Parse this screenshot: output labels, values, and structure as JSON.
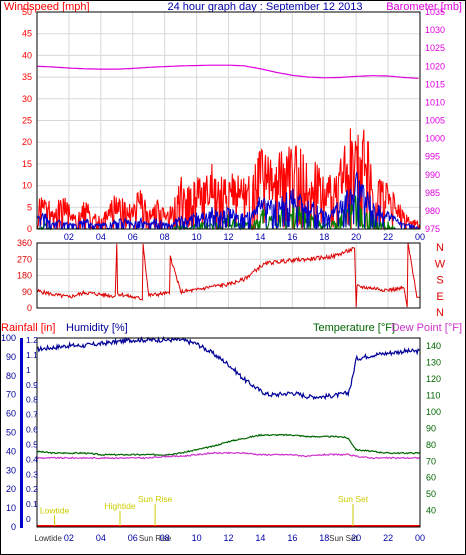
{
  "colors": {
    "windspeed": "#ff0000",
    "gust_avg": "#0000cc",
    "wind_avg": "#008000",
    "barometer": "#e000e0",
    "direction": "#dd0000",
    "humidity": "#000099",
    "temperature": "#006600",
    "dewpoint": "#cc33cc",
    "rainfall": "#ff0000",
    "title": "#0000aa",
    "tide": "#cccc00",
    "border": "#000000"
  },
  "chart_data": [
    {
      "id": "wind",
      "type": "line",
      "title": "24 hour graph day : September 12 2013",
      "ylabel": "Windspeed [mph]",
      "y2label": "Barometer [mb]",
      "ylim": [
        0,
        50
      ],
      "y2lim": [
        975,
        1035
      ],
      "yticks": [
        "0",
        "5",
        "10",
        "15",
        "20",
        "25",
        "30",
        "35",
        "40",
        "45",
        "50"
      ],
      "y2ticks": [
        "975",
        "980",
        "985",
        "990",
        "995",
        "1000",
        "1005",
        "1010",
        "1015",
        "1020",
        "1025",
        "1030",
        "1035"
      ],
      "xlim": [
        0,
        24
      ],
      "xticks": [
        "02",
        "04",
        "06",
        "08",
        "10",
        "12",
        "14",
        "16",
        "18",
        "20",
        "22",
        "00"
      ],
      "xtick_hours": [
        2,
        4,
        6,
        8,
        10,
        12,
        14,
        16,
        18,
        20,
        22,
        24
      ],
      "grid": true,
      "series": [
        {
          "key": "barometer",
          "axis": "y2",
          "x": [
            0,
            1,
            2,
            3,
            4,
            5,
            6,
            7,
            8,
            9,
            10,
            11,
            12,
            13,
            14,
            15,
            16,
            17,
            18,
            19,
            20,
            21,
            22,
            23,
            24
          ],
          "values": [
            1020.0,
            1019.8,
            1019.5,
            1019.3,
            1019.2,
            1019.2,
            1019.4,
            1019.7,
            1019.9,
            1020.1,
            1020.2,
            1020.3,
            1020.3,
            1020.1,
            1019.3,
            1018.3,
            1017.5,
            1017.0,
            1016.8,
            1016.9,
            1017.2,
            1017.4,
            1017.3,
            1016.9,
            1016.6
          ]
        },
        {
          "key": "gust",
          "axis": "y",
          "x": [
            0,
            0.5,
            1,
            1.5,
            2,
            2.5,
            3,
            3.5,
            4,
            4.5,
            5,
            5.5,
            6,
            6.5,
            7,
            7.5,
            8,
            8.5,
            9,
            9.5,
            10,
            10.5,
            11,
            11.5,
            12,
            12.5,
            13,
            13.5,
            14,
            14.5,
            15,
            15.5,
            16,
            16.5,
            17,
            17.5,
            18,
            18.5,
            19,
            19.5,
            20,
            20.5,
            21,
            21.5,
            22,
            22.5,
            23,
            23.5,
            24
          ],
          "values": [
            5,
            7,
            3,
            6,
            4,
            2,
            5,
            3,
            2,
            4,
            6,
            5,
            4,
            7,
            3,
            5,
            3,
            4,
            10,
            7,
            9,
            8,
            11,
            9,
            10,
            9,
            8,
            9,
            13,
            12,
            12,
            13,
            14,
            13,
            10,
            11,
            8,
            9,
            12,
            15,
            20,
            17,
            11,
            9,
            7,
            5,
            3,
            2,
            1
          ]
        },
        {
          "key": "wind_avg",
          "axis": "y",
          "x": [
            0,
            0.5,
            1,
            1.5,
            2,
            2.5,
            3,
            3.5,
            4,
            4.5,
            5,
            5.5,
            6,
            6.5,
            7,
            7.5,
            8,
            8.5,
            9,
            9.5,
            10,
            10.5,
            11,
            11.5,
            12,
            12.5,
            13,
            13.5,
            14,
            14.5,
            15,
            15.5,
            16,
            16.5,
            17,
            17.5,
            18,
            18.5,
            19,
            19.5,
            20,
            20.5,
            21,
            21.5,
            22,
            22.5,
            23,
            23.5,
            24
          ],
          "values": [
            2,
            3,
            1,
            2,
            1,
            1,
            2,
            1,
            1,
            1,
            2,
            2,
            1,
            2,
            1,
            2,
            1,
            1,
            3,
            2,
            3,
            3,
            4,
            3,
            4,
            3,
            3,
            3,
            6,
            5,
            5,
            6,
            7,
            6,
            5,
            5,
            3,
            4,
            5,
            7,
            10,
            8,
            5,
            4,
            3,
            2,
            1,
            1,
            0
          ]
        },
        {
          "key": "wind_min",
          "axis": "y",
          "x": [
            0,
            0.5,
            1,
            1.5,
            2,
            2.5,
            3,
            3.5,
            4,
            4.5,
            5,
            5.5,
            6,
            6.5,
            7,
            7.5,
            8,
            8.5,
            9,
            9.5,
            10,
            10.5,
            11,
            11.5,
            12,
            12.5,
            13,
            13.5,
            14,
            14.5,
            15,
            15.5,
            16,
            16.5,
            17,
            17.5,
            18,
            18.5,
            19,
            19.5,
            20,
            20.5,
            21,
            21.5,
            22,
            22.5,
            23,
            23.5,
            24
          ],
          "values": [
            0,
            1,
            0,
            0,
            0,
            0,
            0,
            0,
            0,
            0,
            0,
            0,
            0,
            0,
            0,
            0,
            0,
            0,
            1,
            0,
            1,
            1,
            1,
            1,
            2,
            1,
            1,
            1,
            3,
            2,
            3,
            3,
            4,
            3,
            2,
            2,
            1,
            1,
            2,
            3,
            5,
            3,
            2,
            1,
            1,
            0,
            0,
            0,
            0
          ]
        }
      ]
    },
    {
      "id": "direction",
      "type": "line",
      "ylim": [
        0,
        360
      ],
      "yticks": [
        "0",
        "90",
        "180",
        "270",
        "360"
      ],
      "y2ticks": [
        "N",
        "W",
        "S",
        "E",
        "N"
      ],
      "xlim": [
        0,
        24
      ],
      "grid": true,
      "series": [
        {
          "key": "direction",
          "axis": "y",
          "x": [
            0,
            1,
            2,
            3,
            4,
            4.9,
            5,
            5.05,
            6,
            6.6,
            6.65,
            7,
            8,
            8.3,
            8.35,
            9,
            10,
            11,
            12,
            13,
            14,
            14.5,
            15,
            16,
            17,
            18,
            18.5,
            19,
            19.9,
            20,
            20.05,
            21,
            22,
            23,
            23.2,
            23.25,
            23.8,
            24
          ],
          "values": [
            95,
            75,
            60,
            85,
            75,
            65,
            355,
            80,
            60,
            50,
            355,
            70,
            80,
            80,
            290,
            90,
            100,
            120,
            130,
            160,
            230,
            250,
            255,
            265,
            270,
            280,
            285,
            300,
            330,
            5,
            120,
            110,
            100,
            110,
            5,
            360,
            60,
            60
          ]
        }
      ]
    },
    {
      "id": "temp_hum",
      "type": "line",
      "ylabel": "Rainfall [in]",
      "ylabel2": "Humidity [%]",
      "y2label": "Temperature [°F]",
      "y2label2": "Dew Point [°F]",
      "hum_ylim": [
        0,
        100
      ],
      "hum_yticks": [
        "0",
        "10",
        "20",
        "30",
        "40",
        "50",
        "60",
        "70",
        "80",
        "90",
        "100"
      ],
      "rain_yticks": [
        "0",
        "0.1",
        "0.2",
        "0.3",
        "0.4",
        "0.5",
        "0.6",
        "0.7",
        "0.8",
        "0.9",
        "1",
        "1.1",
        "1.2"
      ],
      "temp_ylim": [
        30,
        145
      ],
      "temp_yticks": [
        "40",
        "50",
        "60",
        "70",
        "80",
        "90",
        "100",
        "110",
        "120",
        "130",
        "140"
      ],
      "xlim": [
        0,
        24
      ],
      "xticks": [
        "02",
        "04",
        "06",
        "08",
        "10",
        "12",
        "14",
        "16",
        "18",
        "20",
        "22",
        "00"
      ],
      "xtick_hours": [
        2,
        4,
        6,
        8,
        10,
        12,
        14,
        16,
        18,
        20,
        22,
        24
      ],
      "grid": false,
      "annotations": [
        {
          "text": "Lowtide",
          "hour": 1.1,
          "level": 0.28
        },
        {
          "text": "Hightide",
          "hour": 5.2,
          "level": 0.5
        },
        {
          "text": "Sun Rise",
          "hour": 7.4,
          "level": 0.85
        },
        {
          "text": "Sun Set",
          "hour": 19.8,
          "level": 0.85
        }
      ],
      "bottom_labels": [
        "Lowtide",
        "Sun Rise",
        "Sun Set"
      ],
      "series": [
        {
          "key": "humidity",
          "axis": "hum",
          "x": [
            0,
            1,
            2,
            3,
            4,
            5,
            6,
            7,
            8,
            9,
            10,
            11,
            12,
            13,
            14,
            14.5,
            15,
            16,
            17,
            18,
            19,
            19.5,
            19.7,
            20,
            21,
            22,
            23,
            24
          ],
          "values": [
            94,
            95,
            96,
            96,
            97,
            98,
            99,
            99,
            99,
            99,
            97,
            92,
            86,
            78,
            72,
            70,
            70,
            71,
            69,
            69,
            70,
            71,
            76,
            89,
            91,
            92,
            93,
            93
          ]
        },
        {
          "key": "temperature",
          "axis": "temp",
          "x": [
            0,
            1,
            2,
            3,
            4,
            5,
            6,
            7,
            8,
            9,
            10,
            11,
            12,
            13,
            14,
            15,
            16,
            17,
            18,
            19,
            19.5,
            20,
            21,
            22,
            23,
            24
          ],
          "values": [
            76,
            75,
            75,
            75,
            74,
            74,
            74,
            74,
            74,
            75,
            77,
            79,
            82,
            84,
            86,
            86,
            86,
            85,
            85,
            85,
            84,
            77,
            76,
            75,
            75,
            75
          ]
        },
        {
          "key": "dewpoint",
          "axis": "temp",
          "x": [
            0,
            1,
            2,
            3,
            4,
            5,
            6,
            7,
            8,
            9,
            10,
            11,
            12,
            13,
            14,
            15,
            16,
            17,
            18,
            19,
            19.5,
            20,
            21,
            22,
            23,
            24
          ],
          "values": [
            72,
            72,
            72,
            72,
            72,
            72,
            72,
            72,
            73,
            73,
            74,
            75,
            75,
            75,
            74,
            74,
            74,
            73,
            74,
            74,
            74,
            73,
            72,
            72,
            72,
            72
          ]
        },
        {
          "key": "rainfall",
          "axis": "rain",
          "x": [
            0,
            24
          ],
          "values": [
            0,
            0
          ]
        }
      ]
    }
  ]
}
